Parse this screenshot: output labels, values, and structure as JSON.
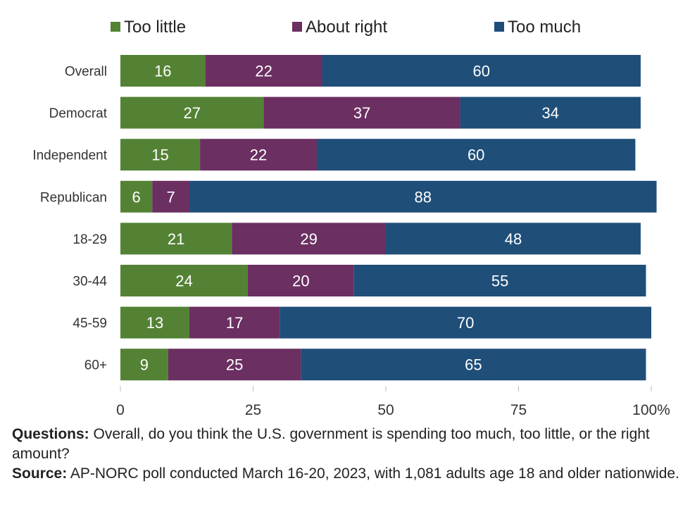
{
  "chart_data": {
    "type": "bar",
    "orientation": "horizontal",
    "stacked": true,
    "categories": [
      "Overall",
      "Democrat",
      "Independent",
      "Republican",
      "18-29",
      "30-44",
      "45-59",
      "60+"
    ],
    "series": [
      {
        "name": "Too little",
        "color": "#548235",
        "values": [
          16,
          27,
          15,
          6,
          21,
          24,
          13,
          9
        ]
      },
      {
        "name": "About right",
        "color": "#6b2f61",
        "values": [
          22,
          37,
          22,
          7,
          29,
          20,
          17,
          25
        ]
      },
      {
        "name": "Too much",
        "color": "#1f4e79",
        "values": [
          60,
          34,
          60,
          88,
          48,
          55,
          70,
          65
        ]
      }
    ],
    "xlim": [
      0,
      100
    ],
    "xticks": [
      "0",
      "25",
      "50",
      "75",
      "100%"
    ],
    "legend_position": "top",
    "grid": false
  },
  "notes": {
    "questions_label": "Questions:",
    "questions_text": " Overall, do you think the U.S. government is spending too much, too little, or the right amount?",
    "source_label": "Source:",
    "source_text": " AP-NORC poll conducted March 16-20, 2023, with 1,081 adults age 18 and older nationwide."
  }
}
